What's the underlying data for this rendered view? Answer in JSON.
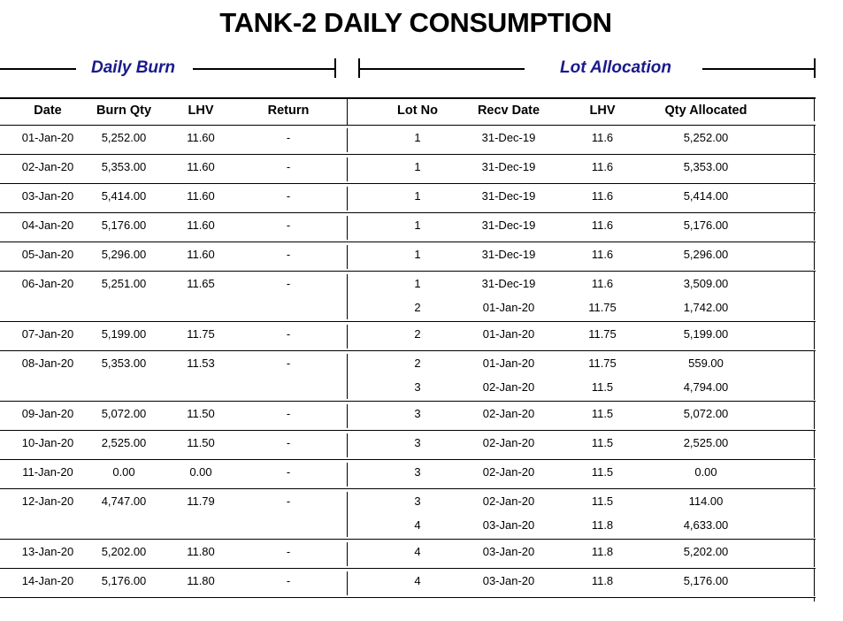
{
  "title": "TANK-2 DAILY CONSUMPTION",
  "sections": {
    "daily_burn": "Daily Burn",
    "lot_allocation": "Lot Allocation"
  },
  "headers": [
    "Date",
    "Burn Qty",
    "LHV",
    "Return",
    "Lot No",
    "Recv Date",
    "LHV",
    "Qty Allocated"
  ],
  "rows": [
    {
      "date": "01-Jan-20",
      "burn": "5,252.00",
      "lhv": "11.60",
      "ret": "-",
      "lots": [
        {
          "lot": "1",
          "recv": "31-Dec-19",
          "lhv": "11.6",
          "qty": "5,252.00"
        }
      ]
    },
    {
      "date": "02-Jan-20",
      "burn": "5,353.00",
      "lhv": "11.60",
      "ret": "-",
      "lots": [
        {
          "lot": "1",
          "recv": "31-Dec-19",
          "lhv": "11.6",
          "qty": "5,353.00"
        }
      ]
    },
    {
      "date": "03-Jan-20",
      "burn": "5,414.00",
      "lhv": "11.60",
      "ret": "-",
      "lots": [
        {
          "lot": "1",
          "recv": "31-Dec-19",
          "lhv": "11.6",
          "qty": "5,414.00"
        }
      ]
    },
    {
      "date": "04-Jan-20",
      "burn": "5,176.00",
      "lhv": "11.60",
      "ret": "-",
      "lots": [
        {
          "lot": "1",
          "recv": "31-Dec-19",
          "lhv": "11.6",
          "qty": "5,176.00"
        }
      ]
    },
    {
      "date": "05-Jan-20",
      "burn": "5,296.00",
      "lhv": "11.60",
      "ret": "-",
      "lots": [
        {
          "lot": "1",
          "recv": "31-Dec-19",
          "lhv": "11.6",
          "qty": "5,296.00"
        }
      ]
    },
    {
      "date": "06-Jan-20",
      "burn": "5,251.00",
      "lhv": "11.65",
      "ret": "-",
      "lots": [
        {
          "lot": "1",
          "recv": "31-Dec-19",
          "lhv": "11.6",
          "qty": "3,509.00"
        },
        {
          "lot": "2",
          "recv": "01-Jan-20",
          "lhv": "11.75",
          "qty": "1,742.00"
        }
      ]
    },
    {
      "date": "07-Jan-20",
      "burn": "5,199.00",
      "lhv": "11.75",
      "ret": "-",
      "lots": [
        {
          "lot": "2",
          "recv": "01-Jan-20",
          "lhv": "11.75",
          "qty": "5,199.00"
        }
      ]
    },
    {
      "date": "08-Jan-20",
      "burn": "5,353.00",
      "lhv": "11.53",
      "ret": "-",
      "lots": [
        {
          "lot": "2",
          "recv": "01-Jan-20",
          "lhv": "11.75",
          "qty": "559.00"
        },
        {
          "lot": "3",
          "recv": "02-Jan-20",
          "lhv": "11.5",
          "qty": "4,794.00"
        }
      ]
    },
    {
      "date": "09-Jan-20",
      "burn": "5,072.00",
      "lhv": "11.50",
      "ret": "-",
      "lots": [
        {
          "lot": "3",
          "recv": "02-Jan-20",
          "lhv": "11.5",
          "qty": "5,072.00"
        }
      ]
    },
    {
      "date": "10-Jan-20",
      "burn": "2,525.00",
      "lhv": "11.50",
      "ret": "-",
      "lots": [
        {
          "lot": "3",
          "recv": "02-Jan-20",
          "lhv": "11.5",
          "qty": "2,525.00"
        }
      ]
    },
    {
      "date": "11-Jan-20",
      "burn": "0.00",
      "lhv": "0.00",
      "ret": "-",
      "lots": [
        {
          "lot": "3",
          "recv": "02-Jan-20",
          "lhv": "11.5",
          "qty": "0.00"
        }
      ]
    },
    {
      "date": "12-Jan-20",
      "burn": "4,747.00",
      "lhv": "11.79",
      "ret": "-",
      "lots": [
        {
          "lot": "3",
          "recv": "02-Jan-20",
          "lhv": "11.5",
          "qty": "114.00"
        },
        {
          "lot": "4",
          "recv": "03-Jan-20",
          "lhv": "11.8",
          "qty": "4,633.00"
        }
      ]
    },
    {
      "date": "13-Jan-20",
      "burn": "5,202.00",
      "lhv": "11.80",
      "ret": "-",
      "lots": [
        {
          "lot": "4",
          "recv": "03-Jan-20",
          "lhv": "11.8",
          "qty": "5,202.00"
        }
      ]
    },
    {
      "date": "14-Jan-20",
      "burn": "5,176.00",
      "lhv": "11.80",
      "ret": "-",
      "lots": [
        {
          "lot": "4",
          "recv": "03-Jan-20",
          "lhv": "11.8",
          "qty": "5,176.00"
        }
      ]
    }
  ]
}
